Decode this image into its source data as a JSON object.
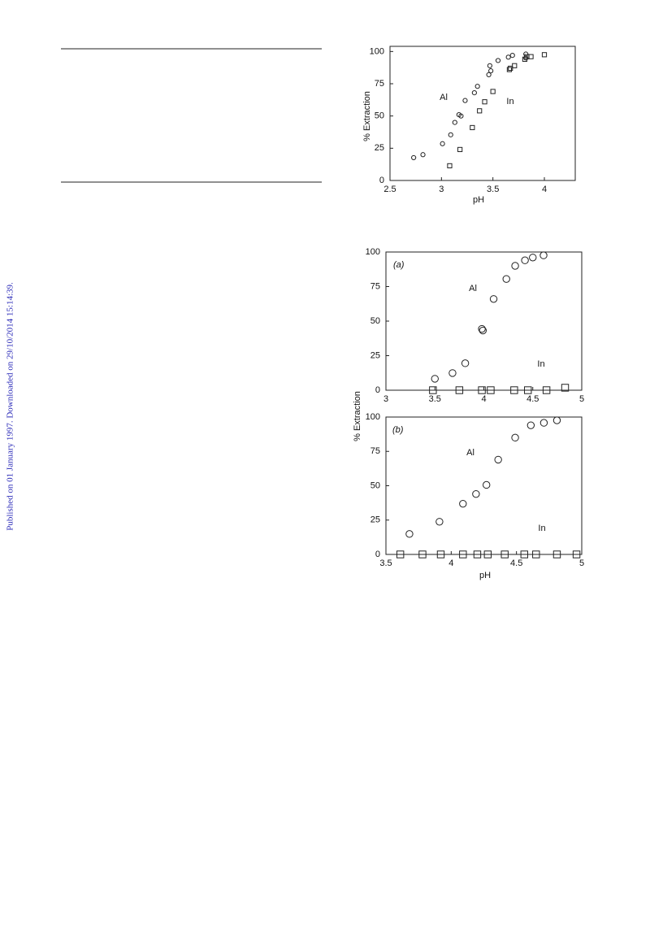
{
  "side_note": "Published on 01 January 1997. Downloaded on 29/10/2014 15:14:39.",
  "chart_data": [
    {
      "type": "scatter",
      "xlabel": "pH",
      "ylabel": "% Extraction",
      "xlim": [
        2.5,
        4.3
      ],
      "ylim": [
        0,
        104
      ],
      "xticks": [
        2.5,
        3,
        3.5,
        4
      ],
      "yticks": [
        0,
        25,
        50,
        75,
        100
      ],
      "series": [
        {
          "name": "Al",
          "marker": "circle",
          "color": "#222",
          "x": [
            2.73,
            2.82,
            3.01,
            3.09,
            3.13,
            3.17,
            3.19,
            3.23,
            3.32,
            3.35,
            3.46,
            3.47,
            3.48,
            3.55,
            3.65,
            3.69,
            3.82,
            3.82
          ],
          "values": [
            17.7,
            20,
            28.5,
            35.4,
            45,
            51,
            50,
            62,
            68,
            73,
            82,
            89,
            85,
            93,
            95.6,
            97,
            98,
            95
          ]
        },
        {
          "name": "In",
          "marker": "square",
          "color": "#222",
          "x": [
            3.08,
            3.18,
            3.3,
            3.37,
            3.42,
            3.5,
            3.66,
            3.67,
            3.71,
            3.81,
            3.83,
            3.87,
            4.0
          ],
          "values": [
            11.4,
            24,
            41,
            54,
            61,
            69,
            86,
            87,
            89,
            94,
            96,
            96,
            97.5
          ]
        }
      ]
    },
    {
      "type": "scatter",
      "panel_label": "(a)",
      "xlim": [
        3,
        5
      ],
      "ylim": [
        0,
        100
      ],
      "xticks": [
        3,
        3.5,
        4,
        4.5,
        5
      ],
      "yticks": [
        0,
        25,
        50,
        75,
        100
      ],
      "series": [
        {
          "name": "Al",
          "marker": "circle",
          "color": "#222",
          "x": [
            3.5,
            3.68,
            3.81,
            3.98,
            3.99,
            4.1,
            4.23,
            4.32,
            4.42,
            4.5,
            4.61
          ],
          "values": [
            8.3,
            12.4,
            19.5,
            44.4,
            43.2,
            66,
            80.5,
            90,
            94,
            96,
            97.6
          ]
        },
        {
          "name": "In",
          "marker": "square",
          "color": "#222",
          "x": [
            3.48,
            3.75,
            3.98,
            4.07,
            4.31,
            4.45,
            4.64,
            4.83
          ],
          "values": [
            0,
            0,
            0,
            0,
            0,
            0,
            0,
            1.8
          ]
        }
      ]
    },
    {
      "type": "scatter",
      "panel_label": "(b)",
      "xlabel": "pH",
      "ylabel": "% Extraction",
      "xlim": [
        3.5,
        5
      ],
      "ylim": [
        0,
        100
      ],
      "xticks": [
        3.5,
        4,
        4.5,
        5
      ],
      "yticks": [
        0,
        25,
        50,
        75,
        100
      ],
      "series": [
        {
          "name": "Al",
          "marker": "circle",
          "color": "#222",
          "x": [
            3.68,
            3.91,
            4.09,
            4.19,
            4.27,
            4.36,
            4.49,
            4.61,
            4.71,
            4.81
          ],
          "values": [
            14.9,
            23.8,
            36.9,
            44,
            50.6,
            69,
            85,
            94,
            95.8,
            97.6
          ]
        },
        {
          "name": "In",
          "marker": "square",
          "color": "#222",
          "x": [
            3.61,
            3.78,
            3.92,
            4.09,
            4.2,
            4.28,
            4.41,
            4.56,
            4.65,
            4.81,
            4.96
          ],
          "values": [
            0,
            0,
            0,
            0,
            0,
            0,
            0,
            0,
            0,
            0,
            0
          ]
        }
      ]
    }
  ]
}
